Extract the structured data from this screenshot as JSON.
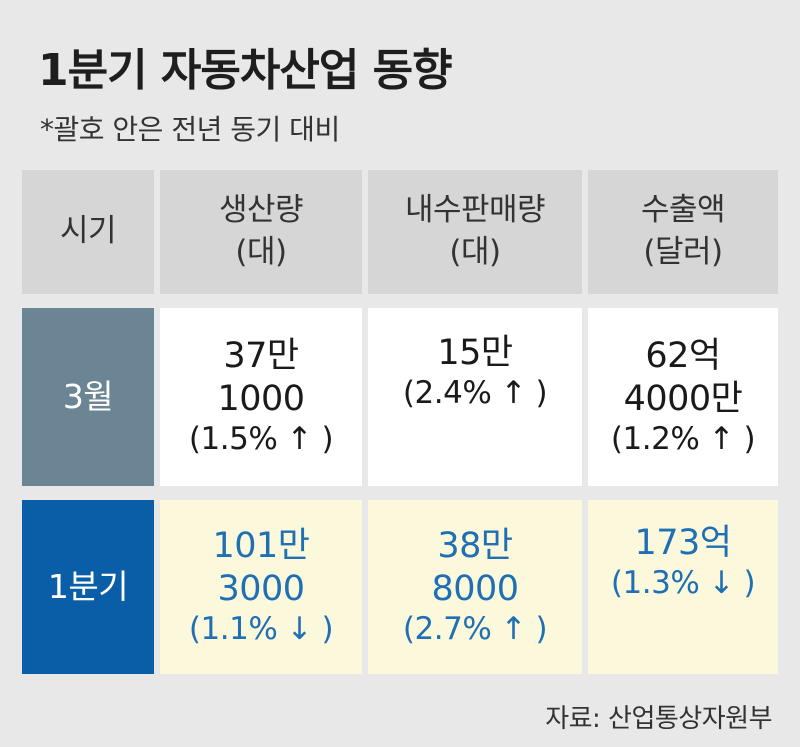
{
  "title": "1분기 자동차산업 동향",
  "subtitle": "*괄호 안은 전년 동기 대비",
  "headers": [
    {
      "l1": "시기",
      "l2": ""
    },
    {
      "l1": "생산량",
      "l2": "(대)"
    },
    {
      "l1": "내수판매량",
      "l2": "(대)"
    },
    {
      "l1": "수출액",
      "l2": "(달러)"
    }
  ],
  "rows": [
    {
      "label": "3월",
      "cells": [
        {
          "v1": "37만",
          "v2": "1000",
          "pct": "(1.5% ↑ )"
        },
        {
          "v1": "15만",
          "v2": "",
          "pct": "(2.4% ↑ )"
        },
        {
          "v1": "62억",
          "v2": "4000만",
          "pct": "(1.2% ↑ )"
        }
      ]
    },
    {
      "label": "1분기",
      "cells": [
        {
          "v1": "101만",
          "v2": "3000",
          "pct": "(1.1% ↓ )"
        },
        {
          "v1": "38만",
          "v2": "8000",
          "pct": "(2.7% ↑ )"
        },
        {
          "v1": "173억",
          "v2": "",
          "pct": "(1.3% ↓ )"
        }
      ]
    }
  ],
  "source": "자료: 산업통상자원부",
  "chart_data": {
    "type": "table",
    "columns": [
      "시기",
      "생산량 (대)",
      "내수판매량 (대)",
      "수출액 (달러)"
    ],
    "rows": [
      [
        "3월",
        "37만 1000 (1.5% ↑)",
        "15만 (2.4% ↑)",
        "62억 4000만 (1.2% ↑)"
      ],
      [
        "1분기",
        "101만 3000 (1.1% ↓)",
        "38만 8000 (2.7% ↑)",
        "173억 (1.3% ↓)"
      ]
    ],
    "colors": {
      "header_bg": "#d6d6d6",
      "march_label_bg": "#6b8595",
      "q1_label_bg": "#0a5ea7",
      "q1_cell_bg": "#fbf8dc",
      "q1_text": "#1f6fb5"
    }
  }
}
